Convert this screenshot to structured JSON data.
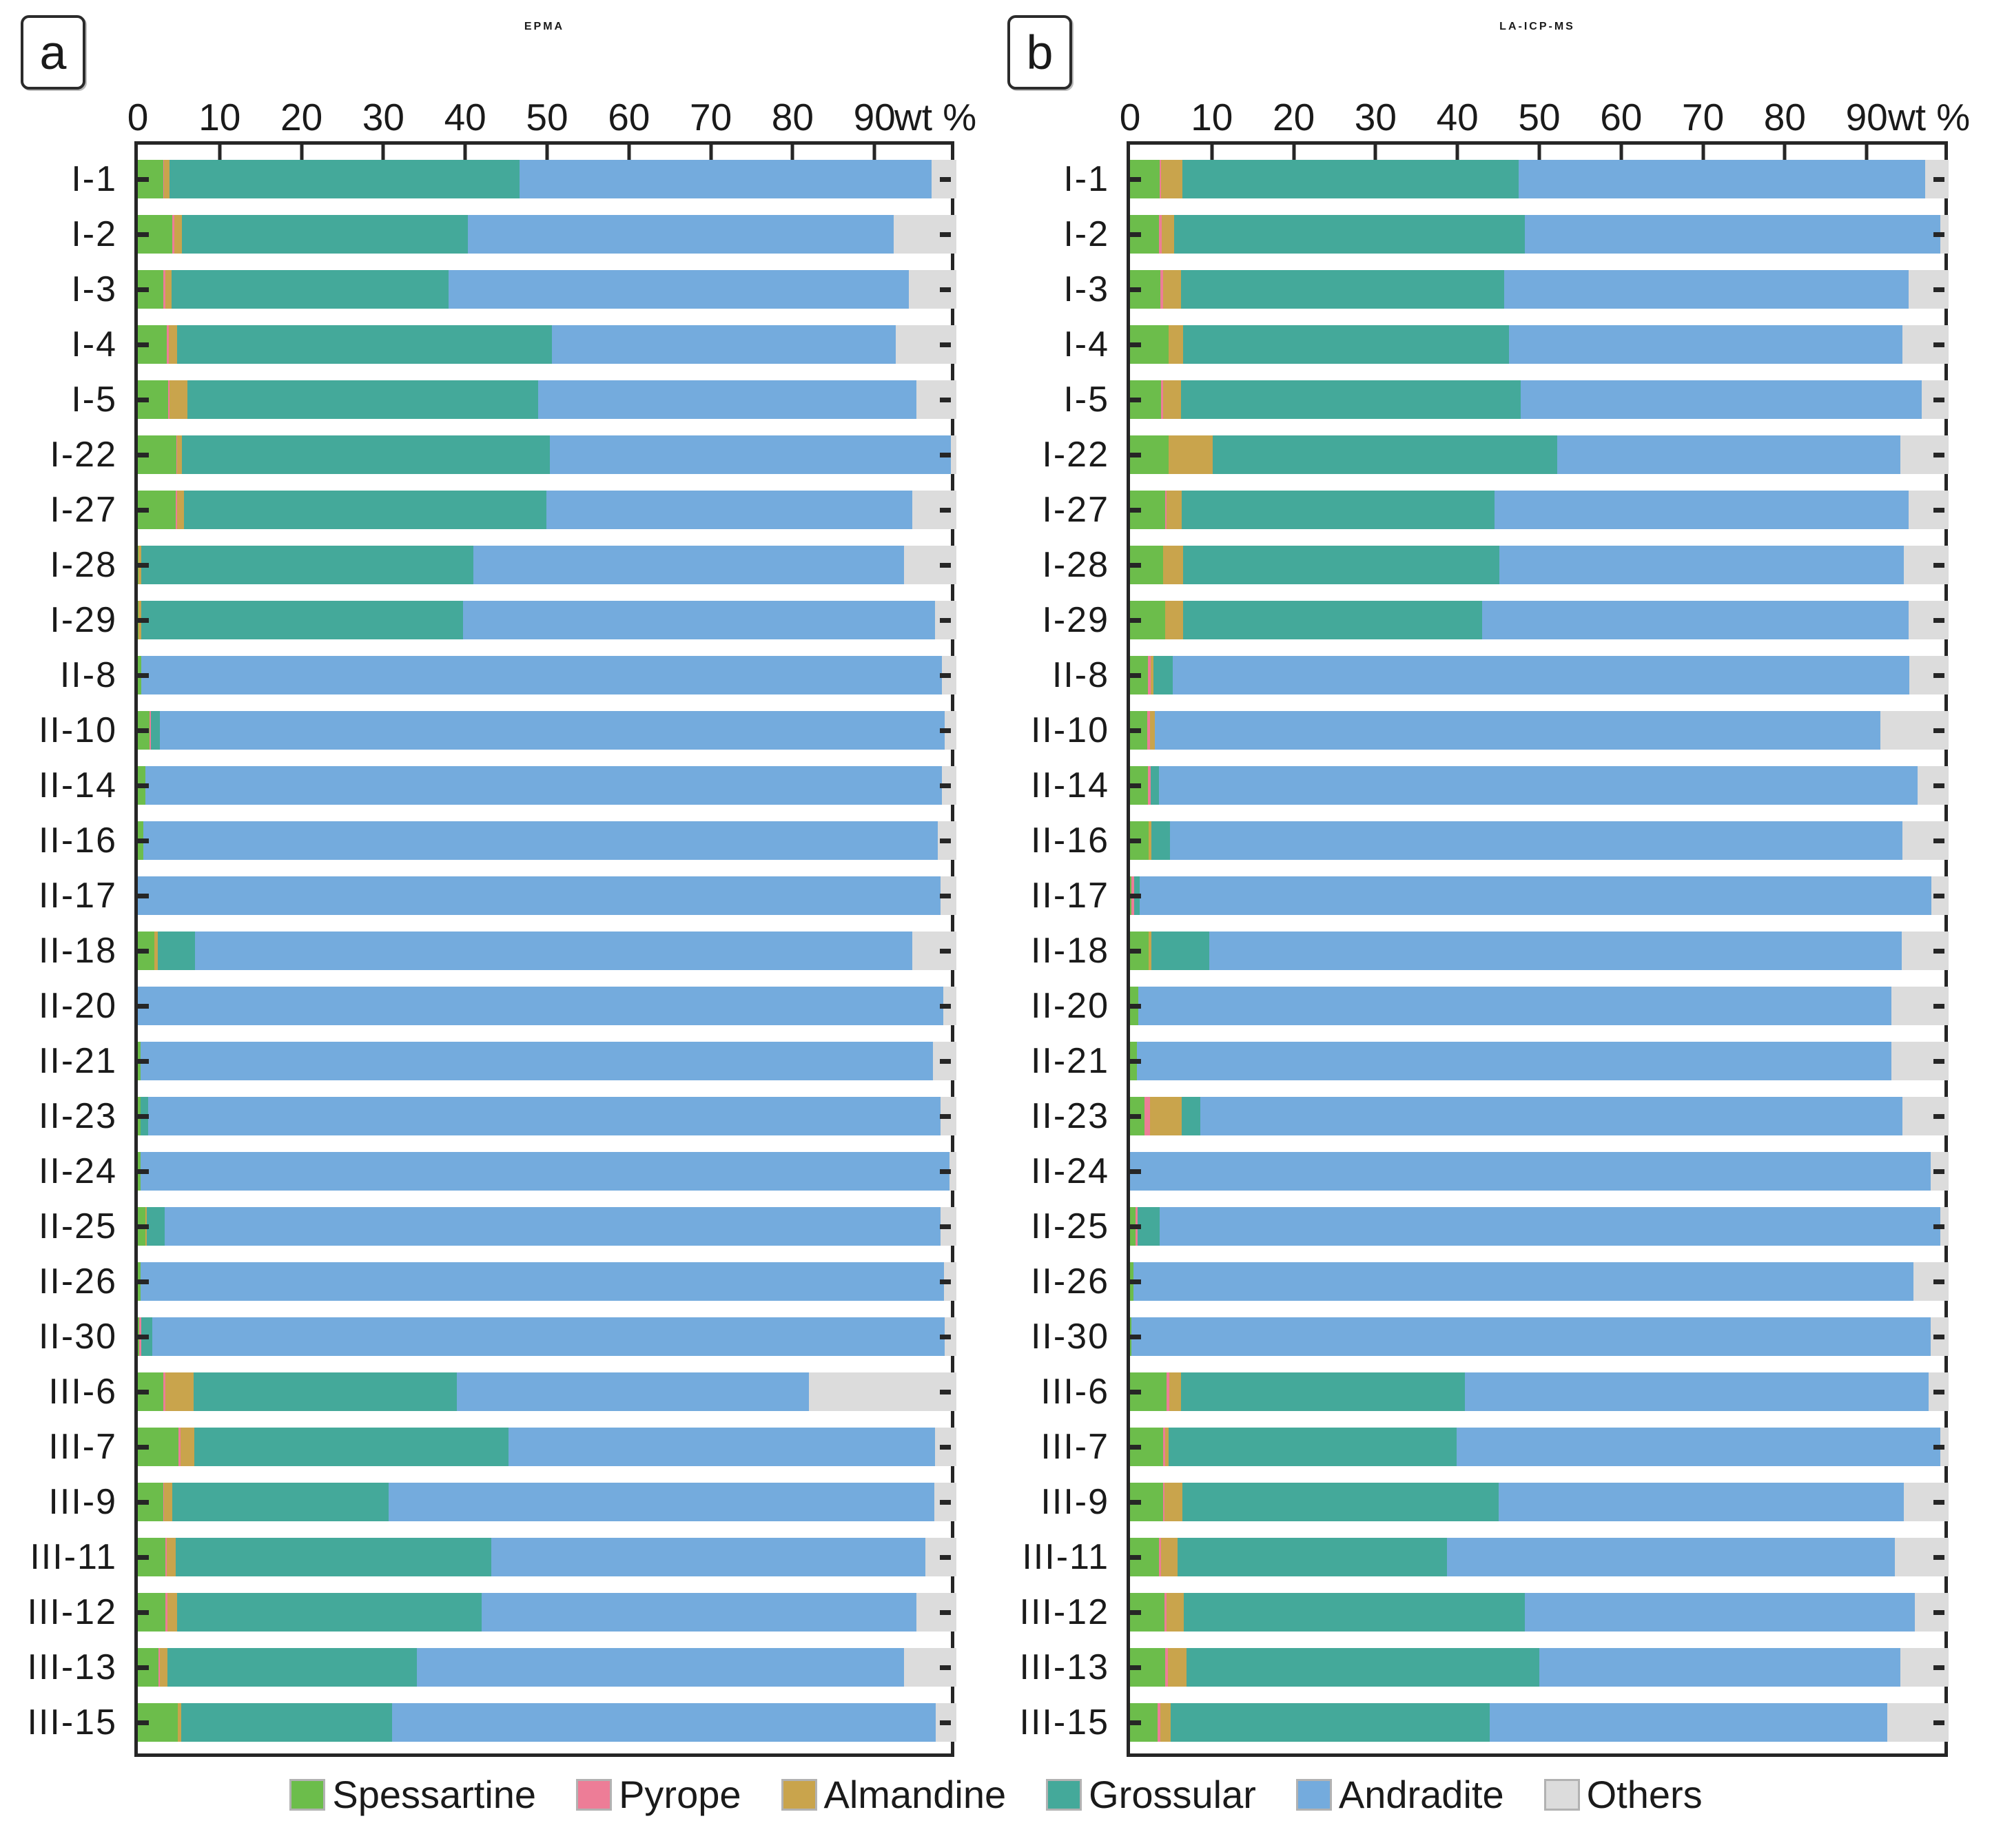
{
  "legend": {
    "items": [
      {
        "label": "Spessartine",
        "color": "#6cbd4b"
      },
      {
        "label": "Pyrope",
        "color": "#ed7d97"
      },
      {
        "label": "Almandine",
        "color": "#c9a44c"
      },
      {
        "label": "Grossular",
        "color": "#44a99a"
      },
      {
        "label": "Andradite",
        "color": "#74abdd"
      },
      {
        "label": "Others",
        "color": "#dcdcdc"
      }
    ]
  },
  "chart_data": {
    "type": "bar",
    "orientation": "horizontal-stacked",
    "unit_label": "wt %",
    "axis_ticks": [
      0,
      10,
      20,
      30,
      40,
      50,
      60,
      70,
      80,
      90
    ],
    "axis_range": [
      0,
      100
    ],
    "grid": false,
    "components": [
      "Spessartine",
      "Pyrope",
      "Almandine",
      "Grossular",
      "Andradite",
      "Others"
    ],
    "colors": [
      "#6cbd4b",
      "#ed7d97",
      "#c9a44c",
      "#44a99a",
      "#74abdd",
      "#dcdcdc"
    ],
    "categories": [
      "I-1",
      "I-2",
      "I-3",
      "I-4",
      "I-5",
      "I-22",
      "I-27",
      "I-28",
      "I-29",
      "II-8",
      "II-10",
      "II-14",
      "II-16",
      "II-17",
      "II-18",
      "II-20",
      "II-21",
      "II-23",
      "II-24",
      "II-25",
      "II-26",
      "II-30",
      "III-6",
      "III-7",
      "III-9",
      "III-11",
      "III-12",
      "III-13",
      "III-15"
    ],
    "panels": [
      {
        "id": "a",
        "title": "EPMA",
        "rows": [
          {
            "sample": "I-1",
            "values": [
              3.1,
              0.1,
              0.7,
              42.7,
              50.4,
              3.0
            ]
          },
          {
            "sample": "I-2",
            "values": [
              4.2,
              0.3,
              0.9,
              34.9,
              52.0,
              7.7
            ]
          },
          {
            "sample": "I-3",
            "values": [
              3.1,
              0.3,
              0.7,
              33.9,
              56.2,
              5.8
            ]
          },
          {
            "sample": "I-4",
            "values": [
              3.5,
              0.3,
              1.0,
              45.8,
              42.0,
              7.4
            ]
          },
          {
            "sample": "I-5",
            "values": [
              3.7,
              0.2,
              2.2,
              42.8,
              46.2,
              4.9
            ]
          },
          {
            "sample": "I-22",
            "values": [
              4.7,
              0.1,
              0.6,
              44.9,
              49.0,
              0.7
            ]
          },
          {
            "sample": "I-27",
            "values": [
              4.6,
              0.2,
              0.8,
              44.3,
              44.7,
              5.4
            ]
          },
          {
            "sample": "I-28",
            "values": [
              0.1,
              0.0,
              0.3,
              40.6,
              52.6,
              6.4
            ]
          },
          {
            "sample": "I-29",
            "values": [
              0.1,
              0.0,
              0.3,
              39.3,
              57.7,
              2.6
            ]
          },
          {
            "sample": "II-8",
            "values": [
              0.4,
              0.0,
              0.0,
              0.0,
              97.8,
              1.8
            ]
          },
          {
            "sample": "II-10",
            "values": [
              1.4,
              0.2,
              0.0,
              1.1,
              95.9,
              1.4
            ]
          },
          {
            "sample": "II-14",
            "values": [
              0.9,
              0.0,
              0.0,
              0.0,
              97.3,
              1.8
            ]
          },
          {
            "sample": "II-16",
            "values": [
              0.7,
              0.0,
              0.0,
              0.0,
              97.0,
              2.3
            ]
          },
          {
            "sample": "II-17",
            "values": [
              0.0,
              0.0,
              0.0,
              0.0,
              98.1,
              1.9
            ]
          },
          {
            "sample": "II-18",
            "values": [
              2.0,
              0.0,
              0.4,
              4.6,
              87.6,
              5.4
            ]
          },
          {
            "sample": "II-20",
            "values": [
              0.0,
              0.0,
              0.0,
              0.0,
              98.4,
              1.6
            ]
          },
          {
            "sample": "II-21",
            "values": [
              0.3,
              0.0,
              0.0,
              0.0,
              96.8,
              2.9
            ]
          },
          {
            "sample": "II-23",
            "values": [
              0.3,
              0.0,
              0.0,
              1.0,
              96.8,
              1.9
            ]
          },
          {
            "sample": "II-24",
            "values": [
              0.3,
              0.0,
              0.0,
              0.0,
              98.9,
              0.8
            ]
          },
          {
            "sample": "II-25",
            "values": [
              0.9,
              0.0,
              0.2,
              2.2,
              94.8,
              1.9
            ]
          },
          {
            "sample": "II-26",
            "values": [
              0.3,
              0.0,
              0.0,
              0.0,
              98.2,
              1.5
            ]
          },
          {
            "sample": "II-30",
            "values": [
              0.2,
              0.2,
              0.0,
              1.4,
              96.8,
              1.4
            ]
          },
          {
            "sample": "III-6",
            "values": [
              3.1,
              0.3,
              3.4,
              32.2,
              43.0,
              18.0
            ]
          },
          {
            "sample": "III-7",
            "values": [
              5.0,
              0.2,
              1.7,
              38.4,
              52.1,
              2.6
            ]
          },
          {
            "sample": "III-9",
            "values": [
              3.1,
              0.1,
              1.0,
              26.4,
              66.7,
              2.7
            ]
          },
          {
            "sample": "III-11",
            "values": [
              3.4,
              0.1,
              1.1,
              38.6,
              53.0,
              3.8
            ]
          },
          {
            "sample": "III-12",
            "values": [
              3.4,
              0.2,
              1.2,
              37.2,
              53.1,
              4.9
            ]
          },
          {
            "sample": "III-13",
            "values": [
              2.5,
              0.2,
              0.9,
              30.5,
              59.5,
              6.4
            ]
          },
          {
            "sample": "III-15",
            "values": [
              4.9,
              0.0,
              0.4,
              25.8,
              66.4,
              2.5
            ]
          }
        ]
      },
      {
        "id": "b",
        "title": "LA-ICP-MS",
        "rows": [
          {
            "sample": "I-1",
            "values": [
              3.6,
              0.2,
              2.6,
              41.1,
              49.6,
              2.9
            ]
          },
          {
            "sample": "I-2",
            "values": [
              3.5,
              0.4,
              1.5,
              42.8,
              50.8,
              1.0
            ]
          },
          {
            "sample": "I-3",
            "values": [
              3.7,
              0.3,
              2.2,
              39.5,
              49.4,
              4.9
            ]
          },
          {
            "sample": "I-4",
            "values": [
              4.7,
              0.0,
              1.8,
              39.8,
              48.1,
              5.6
            ]
          },
          {
            "sample": "I-5",
            "values": [
              3.8,
              0.2,
              2.2,
              41.5,
              49.0,
              3.3
            ]
          },
          {
            "sample": "I-22",
            "values": [
              4.7,
              0.0,
              5.4,
              42.1,
              41.9,
              5.9
            ]
          },
          {
            "sample": "I-27",
            "values": [
              4.3,
              0.2,
              1.8,
              38.2,
              50.6,
              4.9
            ]
          },
          {
            "sample": "I-28",
            "values": [
              4.0,
              0.0,
              2.5,
              38.6,
              49.4,
              5.5
            ]
          },
          {
            "sample": "I-29",
            "values": [
              4.3,
              0.0,
              2.2,
              36.5,
              52.1,
              4.9
            ]
          },
          {
            "sample": "II-8",
            "values": [
              2.2,
              0.3,
              0.4,
              2.3,
              90.0,
              4.8
            ]
          },
          {
            "sample": "II-10",
            "values": [
              2.1,
              0.3,
              0.6,
              0.0,
              88.7,
              8.3
            ]
          },
          {
            "sample": "II-14",
            "values": [
              2.2,
              0.3,
              0.0,
              1.0,
              92.7,
              3.8
            ]
          },
          {
            "sample": "II-16",
            "values": [
              2.3,
              0.0,
              0.3,
              2.3,
              89.5,
              5.6
            ]
          },
          {
            "sample": "II-17",
            "values": [
              0.2,
              0.3,
              0.0,
              0.7,
              96.7,
              2.1
            ]
          },
          {
            "sample": "II-18",
            "values": [
              2.3,
              0.0,
              0.3,
              7.1,
              84.6,
              5.7
            ]
          },
          {
            "sample": "II-20",
            "values": [
              1.0,
              0.0,
              0.0,
              0.0,
              92.0,
              7.0
            ]
          },
          {
            "sample": "II-21",
            "values": [
              0.8,
              0.0,
              0.0,
              0.0,
              92.2,
              7.0
            ]
          },
          {
            "sample": "II-23",
            "values": [
              1.8,
              0.6,
              3.9,
              2.3,
              85.8,
              5.6
            ]
          },
          {
            "sample": "II-24",
            "values": [
              0.0,
              0.0,
              0.0,
              0.0,
              97.8,
              2.2
            ]
          },
          {
            "sample": "II-25",
            "values": [
              0.7,
              0.2,
              0.0,
              2.7,
              95.4,
              1.0
            ]
          },
          {
            "sample": "II-26",
            "values": [
              0.4,
              0.0,
              0.0,
              0.0,
              95.3,
              4.3
            ]
          },
          {
            "sample": "II-30",
            "values": [
              0.2,
              0.0,
              0.0,
              0.0,
              97.6,
              2.2
            ]
          },
          {
            "sample": "III-6",
            "values": [
              4.5,
              0.3,
              1.4,
              34.7,
              56.7,
              2.4
            ]
          },
          {
            "sample": "III-7",
            "values": [
              4.0,
              0.3,
              0.4,
              35.2,
              59.1,
              1.0
            ]
          },
          {
            "sample": "III-9",
            "values": [
              4.0,
              0.2,
              2.2,
              38.6,
              49.5,
              5.5
            ]
          },
          {
            "sample": "III-11",
            "values": [
              3.5,
              0.3,
              2.0,
              32.9,
              54.7,
              6.6
            ]
          },
          {
            "sample": "III-12",
            "values": [
              4.2,
              0.3,
              2.1,
              41.6,
              47.7,
              4.1
            ]
          },
          {
            "sample": "III-13",
            "values": [
              4.3,
              0.3,
              2.3,
              43.1,
              44.1,
              5.9
            ]
          },
          {
            "sample": "III-15",
            "values": [
              3.4,
              0.3,
              1.3,
              38.9,
              48.6,
              7.5
            ]
          }
        ]
      }
    ]
  }
}
